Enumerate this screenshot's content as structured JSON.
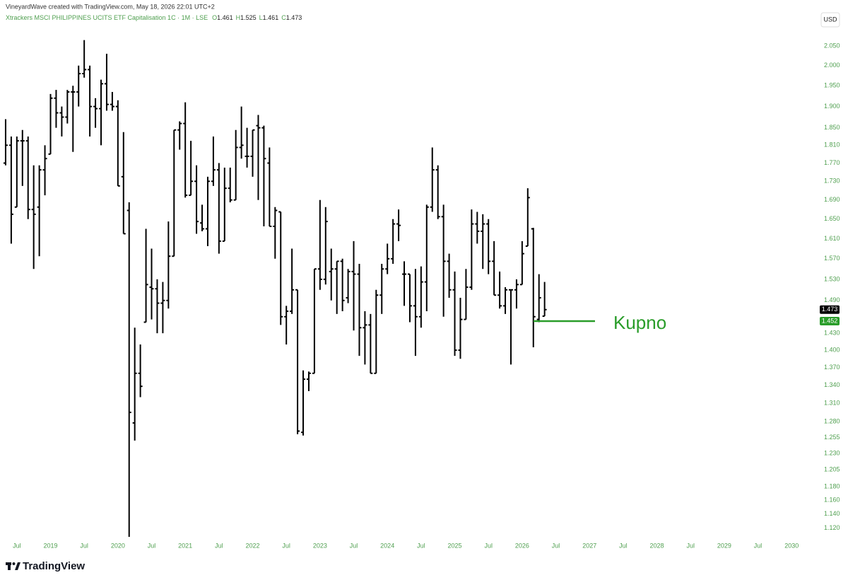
{
  "header": {
    "credit": "VineyardWave created with TradingView.com, May 18, 2026 22:01 UTC+2",
    "currency": "USD",
    "brand": "TradingView"
  },
  "chart_data": {
    "type": "ohlc",
    "title": "Xtrackers MSCI PHILIPPINES UCITS ETF Capitalisation 1C · 1M · LSE",
    "ohlc_letters": [
      "O",
      "H",
      "L",
      "C"
    ],
    "color": "#000000",
    "log_scale": true,
    "grid": false,
    "x": [
      "2018-05",
      "2018-06",
      "2018-07",
      "2018-08",
      "2018-09",
      "2018-10",
      "2018-11",
      "2018-12",
      "2019-01",
      "2019-02",
      "2019-03",
      "2019-04",
      "2019-05",
      "2019-06",
      "2019-07",
      "2019-08",
      "2019-09",
      "2019-10",
      "2019-11",
      "2019-12",
      "2020-01",
      "2020-02",
      "2020-03",
      "2020-04",
      "2020-05",
      "2020-06",
      "2020-07",
      "2020-08",
      "2020-09",
      "2020-10",
      "2020-11",
      "2020-12",
      "2021-01",
      "2021-02",
      "2021-03",
      "2021-04",
      "2021-05",
      "2021-06",
      "2021-07",
      "2021-08",
      "2021-09",
      "2021-10",
      "2021-11",
      "2021-12",
      "2022-01",
      "2022-02",
      "2022-03",
      "2022-04",
      "2022-05",
      "2022-06",
      "2022-07",
      "2022-08",
      "2022-09",
      "2022-10",
      "2022-11",
      "2022-12",
      "2023-01",
      "2023-02",
      "2023-03",
      "2023-04",
      "2023-05",
      "2023-06",
      "2023-07",
      "2023-08",
      "2023-09",
      "2023-10",
      "2023-11",
      "2023-12",
      "2024-01",
      "2024-02",
      "2024-03",
      "2024-04",
      "2024-05",
      "2024-06",
      "2024-07",
      "2024-08",
      "2024-09",
      "2024-10",
      "2024-11",
      "2024-12",
      "2025-01",
      "2025-02",
      "2025-03",
      "2025-04",
      "2025-05",
      "2025-06",
      "2025-07",
      "2025-08",
      "2025-09",
      "2025-10",
      "2025-11",
      "2025-12",
      "2026-01",
      "2026-02",
      "2026-03",
      "2026-04",
      "2026-05"
    ],
    "open": [
      1.77,
      1.81,
      1.675,
      1.82,
      1.82,
      1.67,
      1.675,
      1.755,
      1.79,
      1.92,
      1.885,
      1.875,
      1.935,
      1.935,
      1.98,
      1.99,
      1.9,
      1.895,
      1.955,
      1.905,
      1.9,
      1.74,
      1.668,
      1.278,
      1.36,
      1.45,
      1.515,
      1.512,
      1.485,
      1.49,
      1.575,
      1.845,
      1.86,
      1.7,
      1.73,
      1.642,
      1.63,
      1.73,
      1.755,
      1.605,
      1.715,
      1.69,
      1.805,
      1.785,
      1.785,
      1.855,
      1.85,
      1.77,
      1.635,
      1.665,
      1.46,
      1.47,
      1.51,
      1.263,
      1.35,
      1.36,
      1.55,
      1.53,
      1.545,
      1.55,
      1.565,
      1.495,
      1.545,
      1.54,
      1.44,
      1.445,
      1.36,
      1.5,
      1.55,
      1.57,
      1.64,
      1.54,
      1.54,
      1.48,
      1.46,
      1.525,
      1.675,
      1.755,
      1.655,
      1.565,
      1.51,
      1.4,
      1.455,
      1.515,
      1.64,
      1.625,
      1.64,
      1.565,
      1.5,
      1.48,
      1.51,
      1.51,
      1.52,
      1.595,
      1.63,
      1.455,
      1.461
    ],
    "high": [
      1.87,
      1.83,
      1.83,
      1.845,
      1.83,
      1.765,
      1.765,
      1.81,
      1.93,
      1.94,
      1.9,
      1.94,
      1.95,
      2.0,
      2.065,
      2.0,
      1.92,
      1.965,
      2.03,
      1.935,
      1.915,
      1.84,
      1.685,
      1.44,
      1.41,
      1.63,
      1.59,
      1.53,
      1.525,
      1.645,
      1.845,
      1.865,
      1.91,
      1.82,
      1.765,
      1.68,
      1.74,
      1.83,
      1.77,
      1.76,
      1.76,
      1.845,
      1.9,
      1.85,
      1.845,
      1.88,
      1.855,
      1.805,
      1.675,
      1.665,
      1.48,
      1.59,
      1.51,
      1.365,
      1.363,
      1.55,
      1.69,
      1.675,
      1.59,
      1.565,
      1.57,
      1.55,
      1.605,
      1.56,
      1.47,
      1.465,
      1.51,
      1.56,
      1.6,
      1.65,
      1.67,
      1.565,
      1.54,
      1.55,
      1.555,
      1.68,
      1.805,
      1.765,
      1.68,
      1.58,
      1.545,
      1.495,
      1.55,
      1.67,
      1.665,
      1.66,
      1.65,
      1.605,
      1.545,
      1.515,
      1.51,
      1.53,
      1.605,
      1.715,
      1.632,
      1.54,
      1.525
    ],
    "low": [
      1.765,
      1.6,
      1.675,
      1.72,
      1.65,
      1.55,
      1.575,
      1.7,
      1.79,
      1.85,
      1.83,
      1.86,
      1.795,
      1.9,
      1.97,
      1.83,
      1.85,
      1.81,
      1.89,
      1.89,
      1.72,
      1.62,
      1.108,
      1.25,
      1.32,
      1.45,
      1.455,
      1.43,
      1.43,
      1.475,
      1.575,
      1.8,
      1.695,
      1.7,
      1.62,
      1.625,
      1.595,
      1.72,
      1.58,
      1.605,
      1.685,
      1.69,
      1.78,
      1.76,
      1.74,
      1.69,
      1.635,
      1.635,
      1.57,
      1.445,
      1.41,
      1.465,
      1.26,
      1.258,
      1.33,
      1.36,
      1.51,
      1.52,
      1.49,
      1.465,
      1.47,
      1.485,
      1.435,
      1.39,
      1.375,
      1.36,
      1.36,
      1.465,
      1.54,
      1.56,
      1.605,
      1.48,
      1.45,
      1.39,
      1.44,
      1.47,
      1.665,
      1.65,
      1.46,
      1.495,
      1.39,
      1.385,
      1.455,
      1.51,
      1.6,
      1.55,
      1.54,
      1.5,
      1.475,
      1.465,
      1.375,
      1.475,
      1.52,
      1.595,
      1.405,
      1.45,
      1.461
    ],
    "close": [
      1.81,
      1.66,
      1.82,
      1.82,
      1.67,
      1.66,
      1.755,
      1.78,
      1.92,
      1.885,
      1.875,
      1.935,
      1.935,
      1.98,
      1.99,
      1.9,
      1.895,
      1.955,
      1.905,
      1.9,
      1.72,
      1.62,
      1.295,
      1.36,
      1.338,
      1.52,
      1.512,
      1.485,
      1.49,
      1.575,
      1.845,
      1.86,
      1.7,
      1.73,
      1.645,
      1.63,
      1.73,
      1.755,
      1.605,
      1.715,
      1.69,
      1.805,
      1.81,
      1.785,
      1.845,
      1.85,
      1.78,
      1.635,
      1.668,
      1.46,
      1.47,
      1.51,
      1.265,
      1.35,
      1.36,
      1.55,
      1.53,
      1.645,
      1.55,
      1.565,
      1.49,
      1.545,
      1.54,
      1.44,
      1.445,
      1.36,
      1.5,
      1.55,
      1.57,
      1.64,
      1.637,
      1.54,
      1.48,
      1.46,
      1.525,
      1.675,
      1.755,
      1.655,
      1.565,
      1.51,
      1.4,
      1.455,
      1.515,
      1.64,
      1.625,
      1.64,
      1.565,
      1.5,
      1.48,
      1.51,
      1.51,
      1.52,
      1.58,
      1.695,
      1.46,
      1.495,
      1.473
    ],
    "xlim": [
      "2018-04",
      "2030-05"
    ],
    "xticks": [
      {
        "value": "2018-07",
        "label": "Jul"
      },
      {
        "value": "2019-01",
        "label": "2019"
      },
      {
        "value": "2019-07",
        "label": "Jul"
      },
      {
        "value": "2020-01",
        "label": "2020"
      },
      {
        "value": "2020-07",
        "label": "Jul"
      },
      {
        "value": "2021-01",
        "label": "2021"
      },
      {
        "value": "2021-07",
        "label": "Jul"
      },
      {
        "value": "2022-01",
        "label": "2022"
      },
      {
        "value": "2022-07",
        "label": "Jul"
      },
      {
        "value": "2023-01",
        "label": "2023"
      },
      {
        "value": "2023-07",
        "label": "Jul"
      },
      {
        "value": "2024-01",
        "label": "2024"
      },
      {
        "value": "2024-07",
        "label": "Jul"
      },
      {
        "value": "2025-01",
        "label": "2025"
      },
      {
        "value": "2025-07",
        "label": "Jul"
      },
      {
        "value": "2026-01",
        "label": "2026"
      },
      {
        "value": "2026-07",
        "label": "Jul"
      },
      {
        "value": "2027-01",
        "label": "2027"
      },
      {
        "value": "2027-07",
        "label": "Jul"
      },
      {
        "value": "2028-01",
        "label": "2028"
      },
      {
        "value": "2028-07",
        "label": "Jul"
      },
      {
        "value": "2029-01",
        "label": "2029"
      },
      {
        "value": "2029-07",
        "label": "Jul"
      },
      {
        "value": "2030-01",
        "label": "2030"
      }
    ],
    "ylim": [
      1.105,
      2.137
    ],
    "yticks": [
      {
        "value": 2.05,
        "label": "2.050"
      },
      {
        "value": 2.0,
        "label": "2.000"
      },
      {
        "value": 1.95,
        "label": "1.950"
      },
      {
        "value": 1.9,
        "label": "1.900"
      },
      {
        "value": 1.85,
        "label": "1.850"
      },
      {
        "value": 1.81,
        "label": "1.810"
      },
      {
        "value": 1.77,
        "label": "1.770"
      },
      {
        "value": 1.73,
        "label": "1.730"
      },
      {
        "value": 1.69,
        "label": "1.690"
      },
      {
        "value": 1.65,
        "label": "1.650"
      },
      {
        "value": 1.61,
        "label": "1.610"
      },
      {
        "value": 1.57,
        "label": "1.570"
      },
      {
        "value": 1.53,
        "label": "1.530"
      },
      {
        "value": 1.49,
        "label": "1.490"
      },
      {
        "value": 1.43,
        "label": "1.430"
      },
      {
        "value": 1.4,
        "label": "1.400"
      },
      {
        "value": 1.37,
        "label": "1.370"
      },
      {
        "value": 1.34,
        "label": "1.340"
      },
      {
        "value": 1.31,
        "label": "1.310"
      },
      {
        "value": 1.28,
        "label": "1.280"
      },
      1.255,
      {
        "value": 1.23,
        "label": "1.230"
      },
      1.205,
      {
        "value": 1.18,
        "label": "1.180"
      },
      {
        "value": 1.16,
        "label": "1.160"
      },
      {
        "value": 1.14,
        "label": "1.140"
      },
      {
        "value": 1.12,
        "label": "1.120"
      }
    ],
    "hline": {
      "value": 1.452,
      "text": "Kupno",
      "color": "#2a9d2a"
    }
  }
}
